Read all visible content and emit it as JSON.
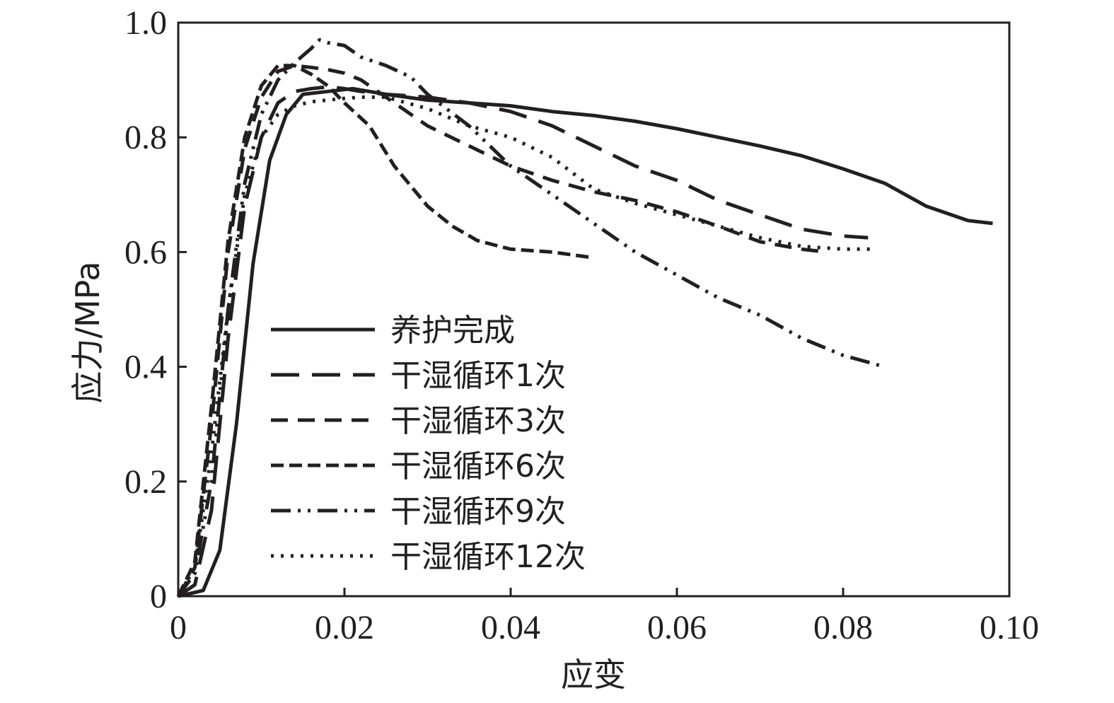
{
  "chart_data": {
    "type": "line",
    "xlabel": "应变",
    "ylabel": "应力/MPa",
    "xlim": [
      0,
      0.1
    ],
    "ylim": [
      0,
      1.0
    ],
    "x_ticks": [
      0,
      0.02,
      0.04,
      0.06,
      0.08,
      0.1
    ],
    "x_tick_labels": [
      "0",
      "0.02",
      "0.04",
      "0.06",
      "0.08",
      "0.10"
    ],
    "y_ticks": [
      0,
      0.2,
      0.4,
      0.6,
      0.8,
      1.0
    ],
    "y_tick_labels": [
      "0",
      "0.2",
      "0.4",
      "0.6",
      "0.8",
      "1.0"
    ],
    "grid": false,
    "legend_position": "lower-left",
    "line_color": "#231f20",
    "series": [
      {
        "name": "养护完成",
        "style": "solid",
        "x": [
          0,
          0.003,
          0.005,
          0.007,
          0.009,
          0.011,
          0.013,
          0.015,
          0.018,
          0.021,
          0.025,
          0.03,
          0.035,
          0.04,
          0.045,
          0.05,
          0.055,
          0.06,
          0.065,
          0.07,
          0.075,
          0.08,
          0.085,
          0.09,
          0.095,
          0.098
        ],
        "y": [
          0,
          0.01,
          0.08,
          0.3,
          0.58,
          0.76,
          0.84,
          0.875,
          0.88,
          0.885,
          0.875,
          0.865,
          0.86,
          0.855,
          0.845,
          0.838,
          0.828,
          0.815,
          0.8,
          0.785,
          0.768,
          0.745,
          0.72,
          0.68,
          0.655,
          0.65
        ]
      },
      {
        "name": "干湿循环1次",
        "style": "long-dash",
        "x": [
          0,
          0.002,
          0.004,
          0.006,
          0.008,
          0.01,
          0.012,
          0.014,
          0.016,
          0.018,
          0.02,
          0.022,
          0.025,
          0.03,
          0.035,
          0.04,
          0.045,
          0.05,
          0.055,
          0.06,
          0.065,
          0.07,
          0.075,
          0.08,
          0.083
        ],
        "y": [
          0,
          0.02,
          0.15,
          0.45,
          0.68,
          0.8,
          0.86,
          0.88,
          0.885,
          0.888,
          0.885,
          0.88,
          0.875,
          0.87,
          0.86,
          0.845,
          0.82,
          0.785,
          0.75,
          0.725,
          0.69,
          0.665,
          0.64,
          0.628,
          0.625
        ]
      },
      {
        "name": "干湿循环3次",
        "style": "dash",
        "x": [
          0,
          0.002,
          0.004,
          0.006,
          0.008,
          0.01,
          0.012,
          0.014,
          0.016,
          0.018,
          0.02,
          0.022,
          0.025,
          0.03,
          0.035,
          0.04,
          0.045,
          0.05,
          0.055,
          0.06,
          0.065,
          0.07,
          0.075,
          0.078
        ],
        "y": [
          0,
          0.05,
          0.3,
          0.6,
          0.78,
          0.87,
          0.915,
          0.925,
          0.922,
          0.918,
          0.912,
          0.9,
          0.87,
          0.82,
          0.785,
          0.75,
          0.725,
          0.705,
          0.69,
          0.67,
          0.645,
          0.618,
          0.605,
          0.6
        ]
      },
      {
        "name": "干湿循环6次",
        "style": "short-dash",
        "x": [
          0,
          0.002,
          0.004,
          0.006,
          0.008,
          0.01,
          0.012,
          0.014,
          0.016,
          0.018,
          0.02,
          0.023,
          0.026,
          0.03,
          0.033,
          0.036,
          0.04,
          0.045,
          0.05
        ],
        "y": [
          0,
          0.06,
          0.33,
          0.62,
          0.8,
          0.89,
          0.925,
          0.925,
          0.91,
          0.89,
          0.86,
          0.82,
          0.75,
          0.68,
          0.645,
          0.62,
          0.605,
          0.6,
          0.59
        ]
      },
      {
        "name": "干湿循环9次",
        "style": "dash-dot-dot",
        "x": [
          0,
          0.002,
          0.004,
          0.006,
          0.008,
          0.01,
          0.012,
          0.014,
          0.016,
          0.017,
          0.018,
          0.02,
          0.022,
          0.025,
          0.028,
          0.03,
          0.035,
          0.04,
          0.045,
          0.05,
          0.055,
          0.06,
          0.065,
          0.07,
          0.075,
          0.08,
          0.085
        ],
        "y": [
          0,
          0.04,
          0.2,
          0.5,
          0.72,
          0.84,
          0.9,
          0.93,
          0.955,
          0.97,
          0.965,
          0.96,
          0.94,
          0.925,
          0.905,
          0.875,
          0.82,
          0.75,
          0.7,
          0.65,
          0.6,
          0.56,
          0.52,
          0.49,
          0.45,
          0.42,
          0.4
        ]
      },
      {
        "name": "干湿循环12次",
        "style": "dot",
        "x": [
          0,
          0.002,
          0.004,
          0.006,
          0.008,
          0.01,
          0.012,
          0.014,
          0.016,
          0.018,
          0.02,
          0.022,
          0.025,
          0.03,
          0.035,
          0.04,
          0.045,
          0.05,
          0.055,
          0.06,
          0.065,
          0.07,
          0.075,
          0.08,
          0.084
        ],
        "y": [
          0,
          0.05,
          0.25,
          0.5,
          0.7,
          0.8,
          0.84,
          0.855,
          0.862,
          0.865,
          0.868,
          0.87,
          0.87,
          0.85,
          0.82,
          0.8,
          0.765,
          0.71,
          0.685,
          0.665,
          0.645,
          0.625,
          0.61,
          0.605,
          0.605
        ]
      }
    ]
  }
}
